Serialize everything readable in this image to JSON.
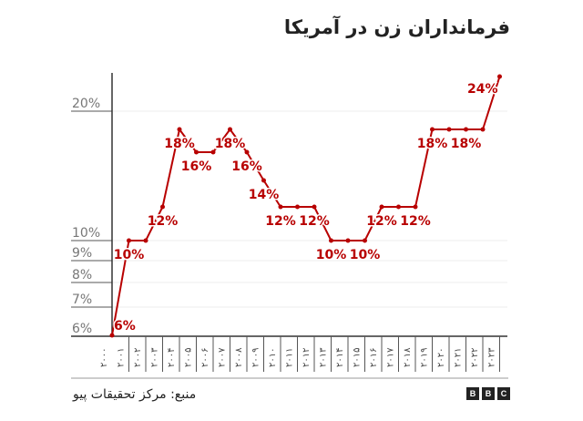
{
  "title": "فرمانداران زن در آمریکا",
  "source": "منبع: مرکز تحقیقات پیو",
  "logo": [
    "B",
    "B",
    "C"
  ],
  "chart_data": {
    "type": "line",
    "title": "فرمانداران زن در آمریکا",
    "categories": [
      "۲۰۰۰",
      "۲۰۰۱",
      "۲۰۰۲",
      "۲۰۰۳",
      "۲۰۰۴",
      "۲۰۰۵",
      "۲۰۰۶",
      "۲۰۰۷",
      "۲۰۰۸",
      "۲۰۰۹",
      "۲۰۱۰",
      "۲۰۱۱",
      "۲۰۱۲",
      "۲۰۱۳",
      "۲۰۱۴",
      "۲۰۱۵",
      "۲۰۱۶",
      "۲۰۱۷",
      "۲۰۱۸",
      "۲۰۱۹",
      "۲۰۲۰",
      "۲۰۲۱",
      "۲۰۲۲",
      "۲۰۲۳"
    ],
    "values": [
      6,
      10,
      10,
      12,
      18,
      16,
      16,
      18,
      16,
      14,
      12,
      12,
      12,
      10,
      10,
      10,
      12,
      12,
      12,
      18,
      18,
      18,
      18,
      24
    ],
    "data_labels": [
      {
        "index": 0,
        "text": "6%"
      },
      {
        "index": 1,
        "text": "10%"
      },
      {
        "index": 3,
        "text": "12%"
      },
      {
        "index": 4,
        "text": "18%"
      },
      {
        "index": 5,
        "text": "16%"
      },
      {
        "index": 7,
        "text": "18%"
      },
      {
        "index": 8,
        "text": "16%"
      },
      {
        "index": 9,
        "text": "14%"
      },
      {
        "index": 10,
        "text": "12%"
      },
      {
        "index": 12,
        "text": "12%"
      },
      {
        "index": 13,
        "text": "10%"
      },
      {
        "index": 15,
        "text": "10%"
      },
      {
        "index": 16,
        "text": "12%"
      },
      {
        "index": 18,
        "text": "12%"
      },
      {
        "index": 19,
        "text": "18%"
      },
      {
        "index": 21,
        "text": "18%"
      },
      {
        "index": 23,
        "text": "24%"
      }
    ],
    "y_ticks": [
      {
        "value": 6,
        "label": "6%"
      },
      {
        "value": 7,
        "label": "7%"
      },
      {
        "value": 8,
        "label": "8%"
      },
      {
        "value": 9,
        "label": "9%"
      },
      {
        "value": 10,
        "label": "10%"
      },
      {
        "value": 20,
        "label": "20%"
      }
    ],
    "ylim": [
      6,
      24
    ],
    "grid": true,
    "colors": {
      "line": "#b80000",
      "tick_text": "#777777",
      "axis": "#333333",
      "grid": "#eeeeee"
    }
  }
}
